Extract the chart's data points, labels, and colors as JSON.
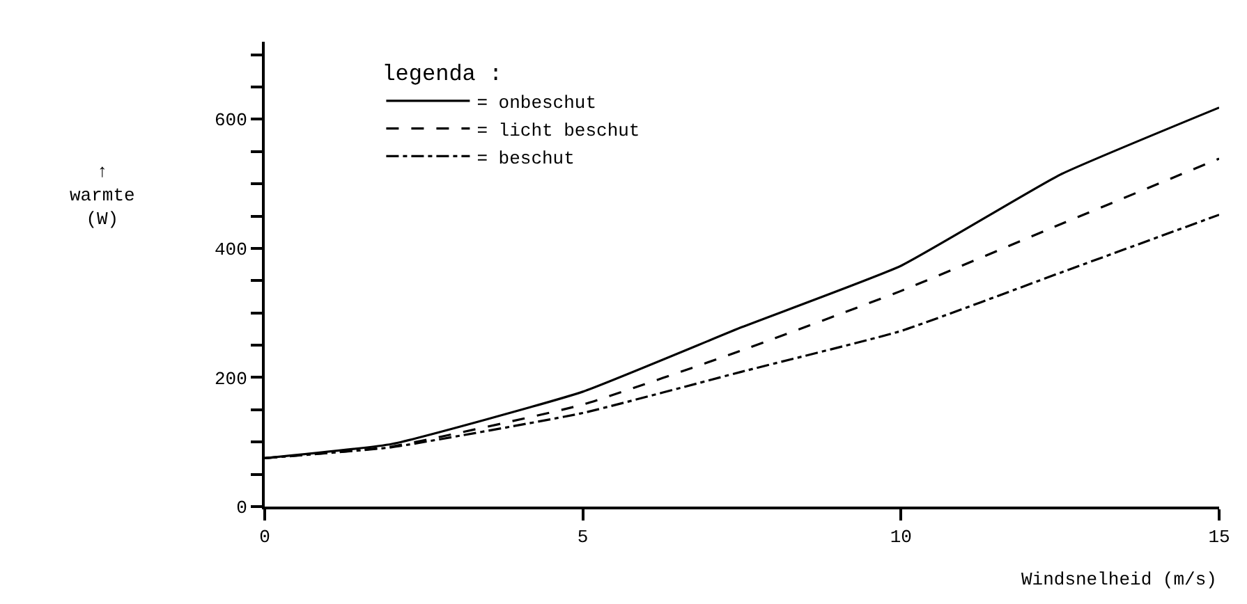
{
  "chart_data": {
    "type": "line",
    "xlabel": "Windsnelheid (m/s)",
    "ylabel": "↑\nwarmte\n(W)",
    "legend_title": "legenda :",
    "x": [
      0,
      2,
      5,
      7.5,
      10,
      12.5,
      15
    ],
    "series": [
      {
        "name": "= onbeschut",
        "color": "#000000",
        "line_style": "solid",
        "values": [
          75,
          97,
          178,
          278,
          373,
          514,
          618
        ]
      },
      {
        "name": "= licht beschut",
        "color": "#000000",
        "line_style": "dashed",
        "values": [
          75,
          93,
          158,
          242,
          334,
          437,
          539
        ]
      },
      {
        "name": "= beschut",
        "color": "#000000",
        "line_style": "dashdot",
        "values": [
          75,
          92,
          145,
          209,
          272,
          362,
          452
        ]
      }
    ],
    "xlim": [
      0,
      15
    ],
    "xticks": [
      0,
      5,
      10,
      15
    ],
    "ylim": [
      0,
      720
    ],
    "yticks": [
      0,
      {
        "value": 50,
        "label": null
      },
      {
        "value": 100,
        "label": null
      },
      {
        "value": 150,
        "label": null
      },
      200,
      {
        "value": 250,
        "label": null
      },
      {
        "value": 300,
        "label": null
      },
      {
        "value": 350,
        "label": null
      },
      400,
      {
        "value": 450,
        "label": null
      },
      {
        "value": 500,
        "label": null
      },
      {
        "value": 550,
        "label": null
      },
      600,
      {
        "value": 650,
        "label": null
      },
      {
        "value": 700,
        "label": null
      }
    ],
    "legend": "top left",
    "marker": "none"
  }
}
